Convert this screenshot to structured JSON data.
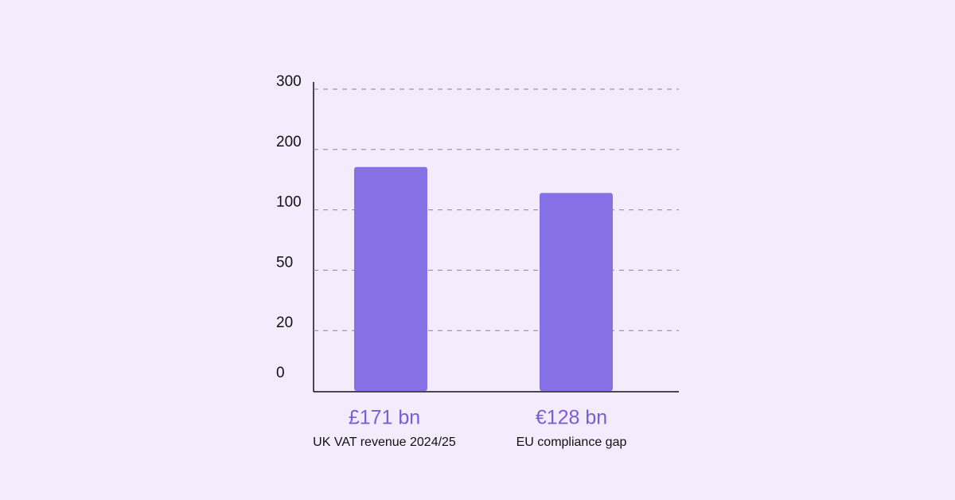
{
  "chart_data": {
    "type": "bar",
    "categories": [
      "UK VAT revenue 2024/25",
      "EU compliance gap"
    ],
    "values": [
      171,
      128
    ],
    "value_labels": [
      "£171 bn",
      "€128 bn"
    ],
    "color": "#8570e6",
    "label_color": "#7a5cd8",
    "ylim": [
      0,
      300
    ],
    "yticks": [
      0,
      20,
      50,
      100,
      200,
      300
    ],
    "yscale": "even-ticks",
    "grid": true
  }
}
